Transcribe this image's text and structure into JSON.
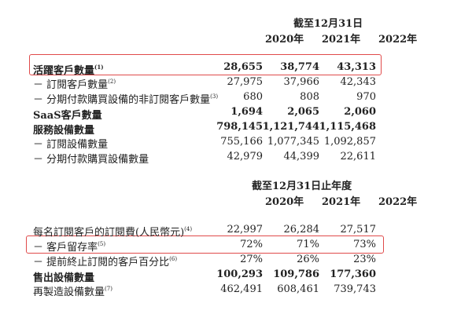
{
  "section1": {
    "header": "截至12月31日",
    "years": [
      "2020年",
      "2021年",
      "2022年"
    ],
    "rows": [
      {
        "label": "活躍客戶數量",
        "note": "(1)",
        "values": [
          "28,655",
          "38,774",
          "43,313"
        ],
        "bold": true,
        "highlighted": true
      },
      {
        "label": "－ 訂閱客戶數量",
        "note": "(2)",
        "values": [
          "27,975",
          "37,966",
          "42,343"
        ]
      },
      {
        "label": "－ 分期付款購買設備的非訂閱客戶數量",
        "note": "(3)",
        "values": [
          "680",
          "808",
          "970"
        ]
      },
      {
        "label": "SaaS客戶數量",
        "note": "",
        "values": [
          "1,694",
          "2,065",
          "2,060"
        ],
        "bold": true
      },
      {
        "label": "服務設備數量",
        "note": "",
        "values": [
          "798,145",
          "1,121,744",
          "1,115,468"
        ],
        "bold": true
      },
      {
        "label": "－ 訂閱設備數量",
        "note": "",
        "values": [
          "755,166",
          "1,077,345",
          "1,092,857"
        ]
      },
      {
        "label": "－ 分期付款購買設備數量",
        "note": "",
        "values": [
          "42,979",
          "44,399",
          "22,611"
        ]
      }
    ]
  },
  "section2": {
    "header": "截至12月31日止年度",
    "years": [
      "2020年",
      "2021年",
      "2022年"
    ],
    "rows": [
      {
        "label": "每名訂閱客戶的訂閱費(人民幣元)",
        "note": "(4)",
        "values": [
          "22,997",
          "26,284",
          "27,517"
        ]
      },
      {
        "label": "－ 客戶留存率",
        "note": "(5)",
        "values": [
          "72%",
          "71%",
          "73%"
        ],
        "highlighted": true
      },
      {
        "label": "－ 提前終止訂閱的客戶百分比",
        "note": "(6)",
        "values": [
          "27%",
          "26%",
          "23%"
        ]
      },
      {
        "label": "售出設備數量",
        "note": "",
        "values": [
          "100,293",
          "109,786",
          "177,360"
        ],
        "bold": true
      },
      {
        "label": "再製造設備數量",
        "note": "(7)",
        "values": [
          "462,491",
          "608,461",
          "739,743"
        ]
      }
    ]
  },
  "highlight_color": "#e04a4a"
}
